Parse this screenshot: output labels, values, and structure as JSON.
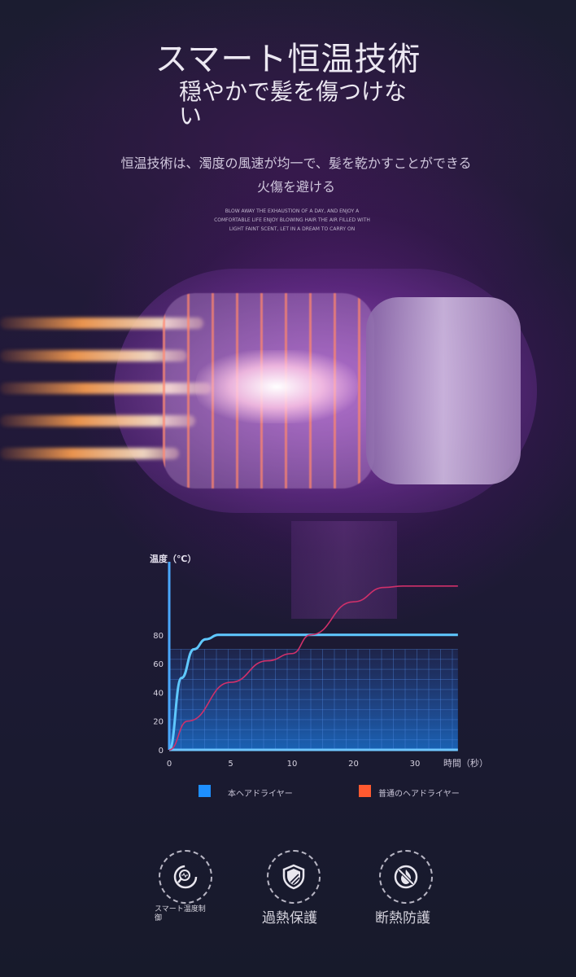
{
  "header": {
    "title": "スマート恒温技術",
    "subtitle": "穏やかで髪を傷つけない",
    "description_line1": "恒温技術は、濁度の風速が均一で、髪を乾かすことができる",
    "description_line2": "火傷を避ける",
    "english_text": "BLOW AWAY THE EXHAUSTION OF A DAY, AND ENJOY A COMFORTABLE LIFE ENJOY BLOWING HAIR THE AIR FILLED WITH LIGHT FAINT SCENT, LET IN A DREAM TO CARRY ON"
  },
  "chart_data": {
    "type": "line",
    "title": "",
    "ylabel": "温度（℃）",
    "xlabel": "時間（秒）",
    "x_ticks": [
      0,
      5,
      10,
      20,
      30
    ],
    "y_ticks": [
      0,
      20,
      40,
      60,
      80
    ],
    "ylim": [
      0,
      120
    ],
    "grid": true,
    "legend_position": "bottom",
    "series": [
      {
        "name": "本ヘアドライヤー",
        "color": "#5fc8ff",
        "legend_color": "#1e8fff",
        "x": [
          0,
          1,
          2,
          3,
          4,
          37
        ],
        "y": [
          0,
          50,
          70,
          77,
          80,
          80
        ]
      },
      {
        "name": "普通のヘアドライヤー",
        "color": "#d0306a",
        "legend_color": "#ff5a30",
        "x": [
          0,
          1.5,
          5,
          8,
          10,
          13,
          20,
          25,
          28,
          37
        ],
        "y": [
          0,
          20,
          47,
          62,
          67,
          80,
          103,
          113,
          114,
          114
        ]
      }
    ]
  },
  "features": [
    {
      "label": "スマート温度制御",
      "icon": "magnifier-pulse-icon"
    },
    {
      "label": "過熱保護",
      "icon": "shield-icon"
    },
    {
      "label": "断熱防護",
      "icon": "no-fire-icon"
    }
  ]
}
